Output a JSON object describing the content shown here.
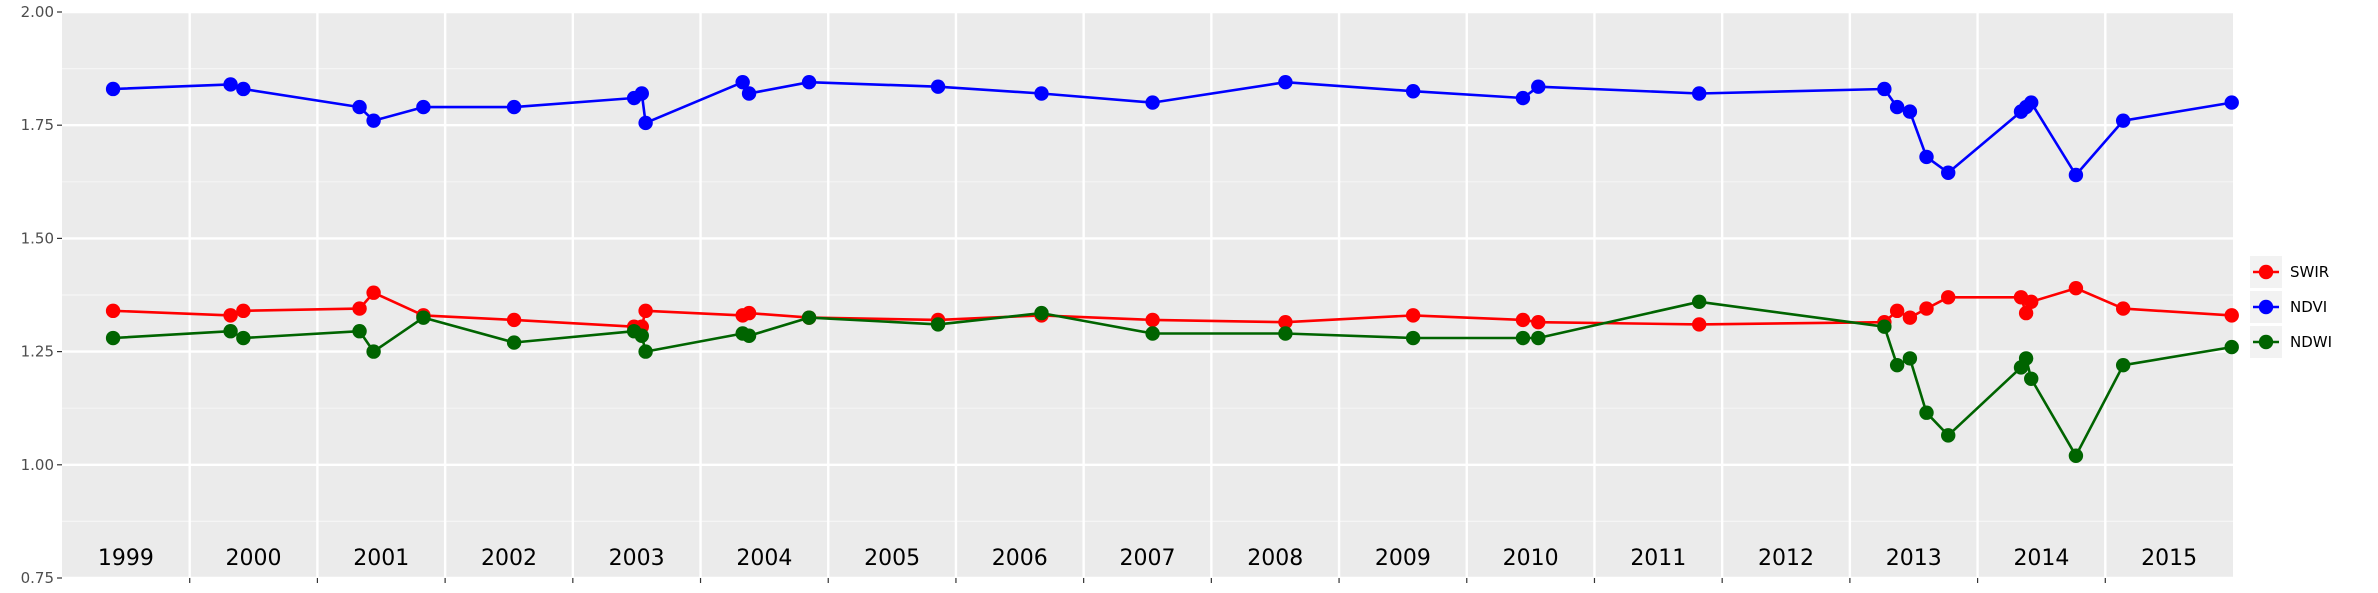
{
  "chart_data": {
    "type": "line",
    "title": "",
    "xlabel": "",
    "ylabel": "",
    "ylim": [
      0.75,
      2.0
    ],
    "yticks": [
      "0.75",
      "1.00",
      "1.25",
      "1.50",
      "1.75",
      "2.00"
    ],
    "xlim": [
      1999.0,
      2016.0
    ],
    "year_labels": [
      "1999",
      "2000",
      "2001",
      "2002",
      "2003",
      "2004",
      "2005",
      "2006",
      "2007",
      "2008",
      "2009",
      "2010",
      "2011",
      "2012",
      "2013",
      "2014",
      "2015"
    ],
    "x": [
      1999.4,
      2000.32,
      2000.42,
      2001.33,
      2001.44,
      2001.83,
      2002.54,
      2003.48,
      2003.54,
      2003.57,
      2004.33,
      2004.38,
      2004.85,
      2005.86,
      2006.67,
      2007.54,
      2008.58,
      2009.58,
      2010.44,
      2010.56,
      2011.82,
      2013.27,
      2013.37,
      2013.47,
      2013.6,
      2013.77,
      2014.34,
      2014.38,
      2014.42,
      2014.77,
      2015.14,
      2015.99
    ],
    "series": [
      {
        "name": "SWIR",
        "color": "#ff0000",
        "values": [
          1.34,
          1.33,
          1.34,
          1.345,
          1.38,
          1.33,
          1.32,
          1.305,
          1.305,
          1.34,
          1.33,
          1.335,
          1.325,
          1.32,
          1.33,
          1.32,
          1.315,
          1.33,
          1.32,
          1.315,
          1.31,
          1.315,
          1.34,
          1.325,
          1.345,
          1.37,
          1.37,
          1.335,
          1.36,
          1.39,
          1.345,
          1.33
        ]
      },
      {
        "name": "NDVI",
        "color": "#0000ff",
        "values": [
          1.83,
          1.84,
          1.83,
          1.79,
          1.76,
          1.79,
          1.79,
          1.81,
          1.82,
          1.755,
          1.845,
          1.82,
          1.845,
          1.835,
          1.82,
          1.8,
          1.845,
          1.825,
          1.81,
          1.835,
          1.82,
          1.83,
          1.79,
          1.78,
          1.68,
          1.645,
          1.78,
          1.79,
          1.8,
          1.64,
          1.76,
          1.8
        ]
      },
      {
        "name": "NDWI",
        "color": "#006400",
        "values": [
          1.28,
          1.295,
          1.28,
          1.295,
          1.25,
          1.325,
          1.27,
          1.295,
          1.285,
          1.25,
          1.29,
          1.285,
          1.325,
          1.31,
          1.335,
          1.29,
          1.29,
          1.28,
          1.28,
          1.28,
          1.36,
          1.305,
          1.22,
          1.235,
          1.115,
          1.065,
          1.215,
          1.235,
          1.19,
          1.02,
          1.22,
          1.26
        ]
      }
    ],
    "legend_position": "right",
    "grid": true
  }
}
